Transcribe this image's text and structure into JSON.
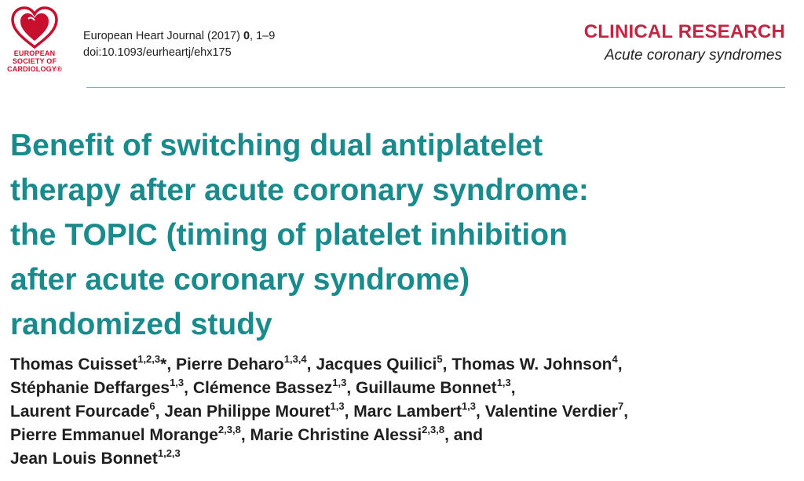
{
  "logo": {
    "icon": "heart-icon",
    "line1": "EUROPEAN",
    "line2": "SOCIETY OF",
    "line3": "CARDIOLOGY®",
    "color": "#c8102e"
  },
  "citation": {
    "journal": "European Heart Journal (2017)",
    "volume": "0",
    "pages": ", 1–9",
    "doi": "doi:10.1093/eurheartj/ehx175"
  },
  "section": {
    "category": "CLINICAL RESEARCH",
    "subcategory": "Acute coronary syndromes",
    "color": "#c42342"
  },
  "title": {
    "lines": [
      "Benefit of switching dual antiplatelet",
      "therapy after acute coronary syndrome:",
      "the TOPIC (timing of platelet inhibition",
      "after acute coronary syndrome)",
      "randomized study"
    ],
    "color": "#1a8b8c"
  },
  "authors": [
    {
      "name": "Thomas Cuisset",
      "aff": "1,2,3",
      "mark": "*",
      "sep": ", "
    },
    {
      "name": "Pierre Deharo",
      "aff": "1,3,4",
      "mark": "",
      "sep": ", "
    },
    {
      "name": "Jacques Quilici",
      "aff": "5",
      "mark": "",
      "sep": ", "
    },
    {
      "name": "Thomas W. Johnson",
      "aff": "4",
      "mark": "",
      "sep": ","
    },
    {
      "name": "Stéphanie Deffarges",
      "aff": "1,3",
      "mark": "",
      "sep": ", "
    },
    {
      "name": "Clémence Bassez",
      "aff": "1,3",
      "mark": "",
      "sep": ", "
    },
    {
      "name": "Guillaume Bonnet",
      "aff": "1,3",
      "mark": "",
      "sep": ","
    },
    {
      "name": "Laurent Fourcade",
      "aff": "6",
      "mark": "",
      "sep": ", "
    },
    {
      "name": "Jean Philippe Mouret",
      "aff": "1,3",
      "mark": "",
      "sep": ", "
    },
    {
      "name": "Marc Lambert",
      "aff": "1,3",
      "mark": "",
      "sep": ", "
    },
    {
      "name": "Valentine Verdier",
      "aff": "7",
      "mark": "",
      "sep": ","
    },
    {
      "name": "Pierre Emmanuel Morange",
      "aff": "2,3,8",
      "mark": "",
      "sep": ", "
    },
    {
      "name": "Marie Christine Alessi",
      "aff": "2,3,8",
      "mark": "",
      "sep": ", and"
    },
    {
      "name": "Jean Louis Bonnet",
      "aff": "1,2,3",
      "mark": "",
      "sep": ""
    }
  ]
}
